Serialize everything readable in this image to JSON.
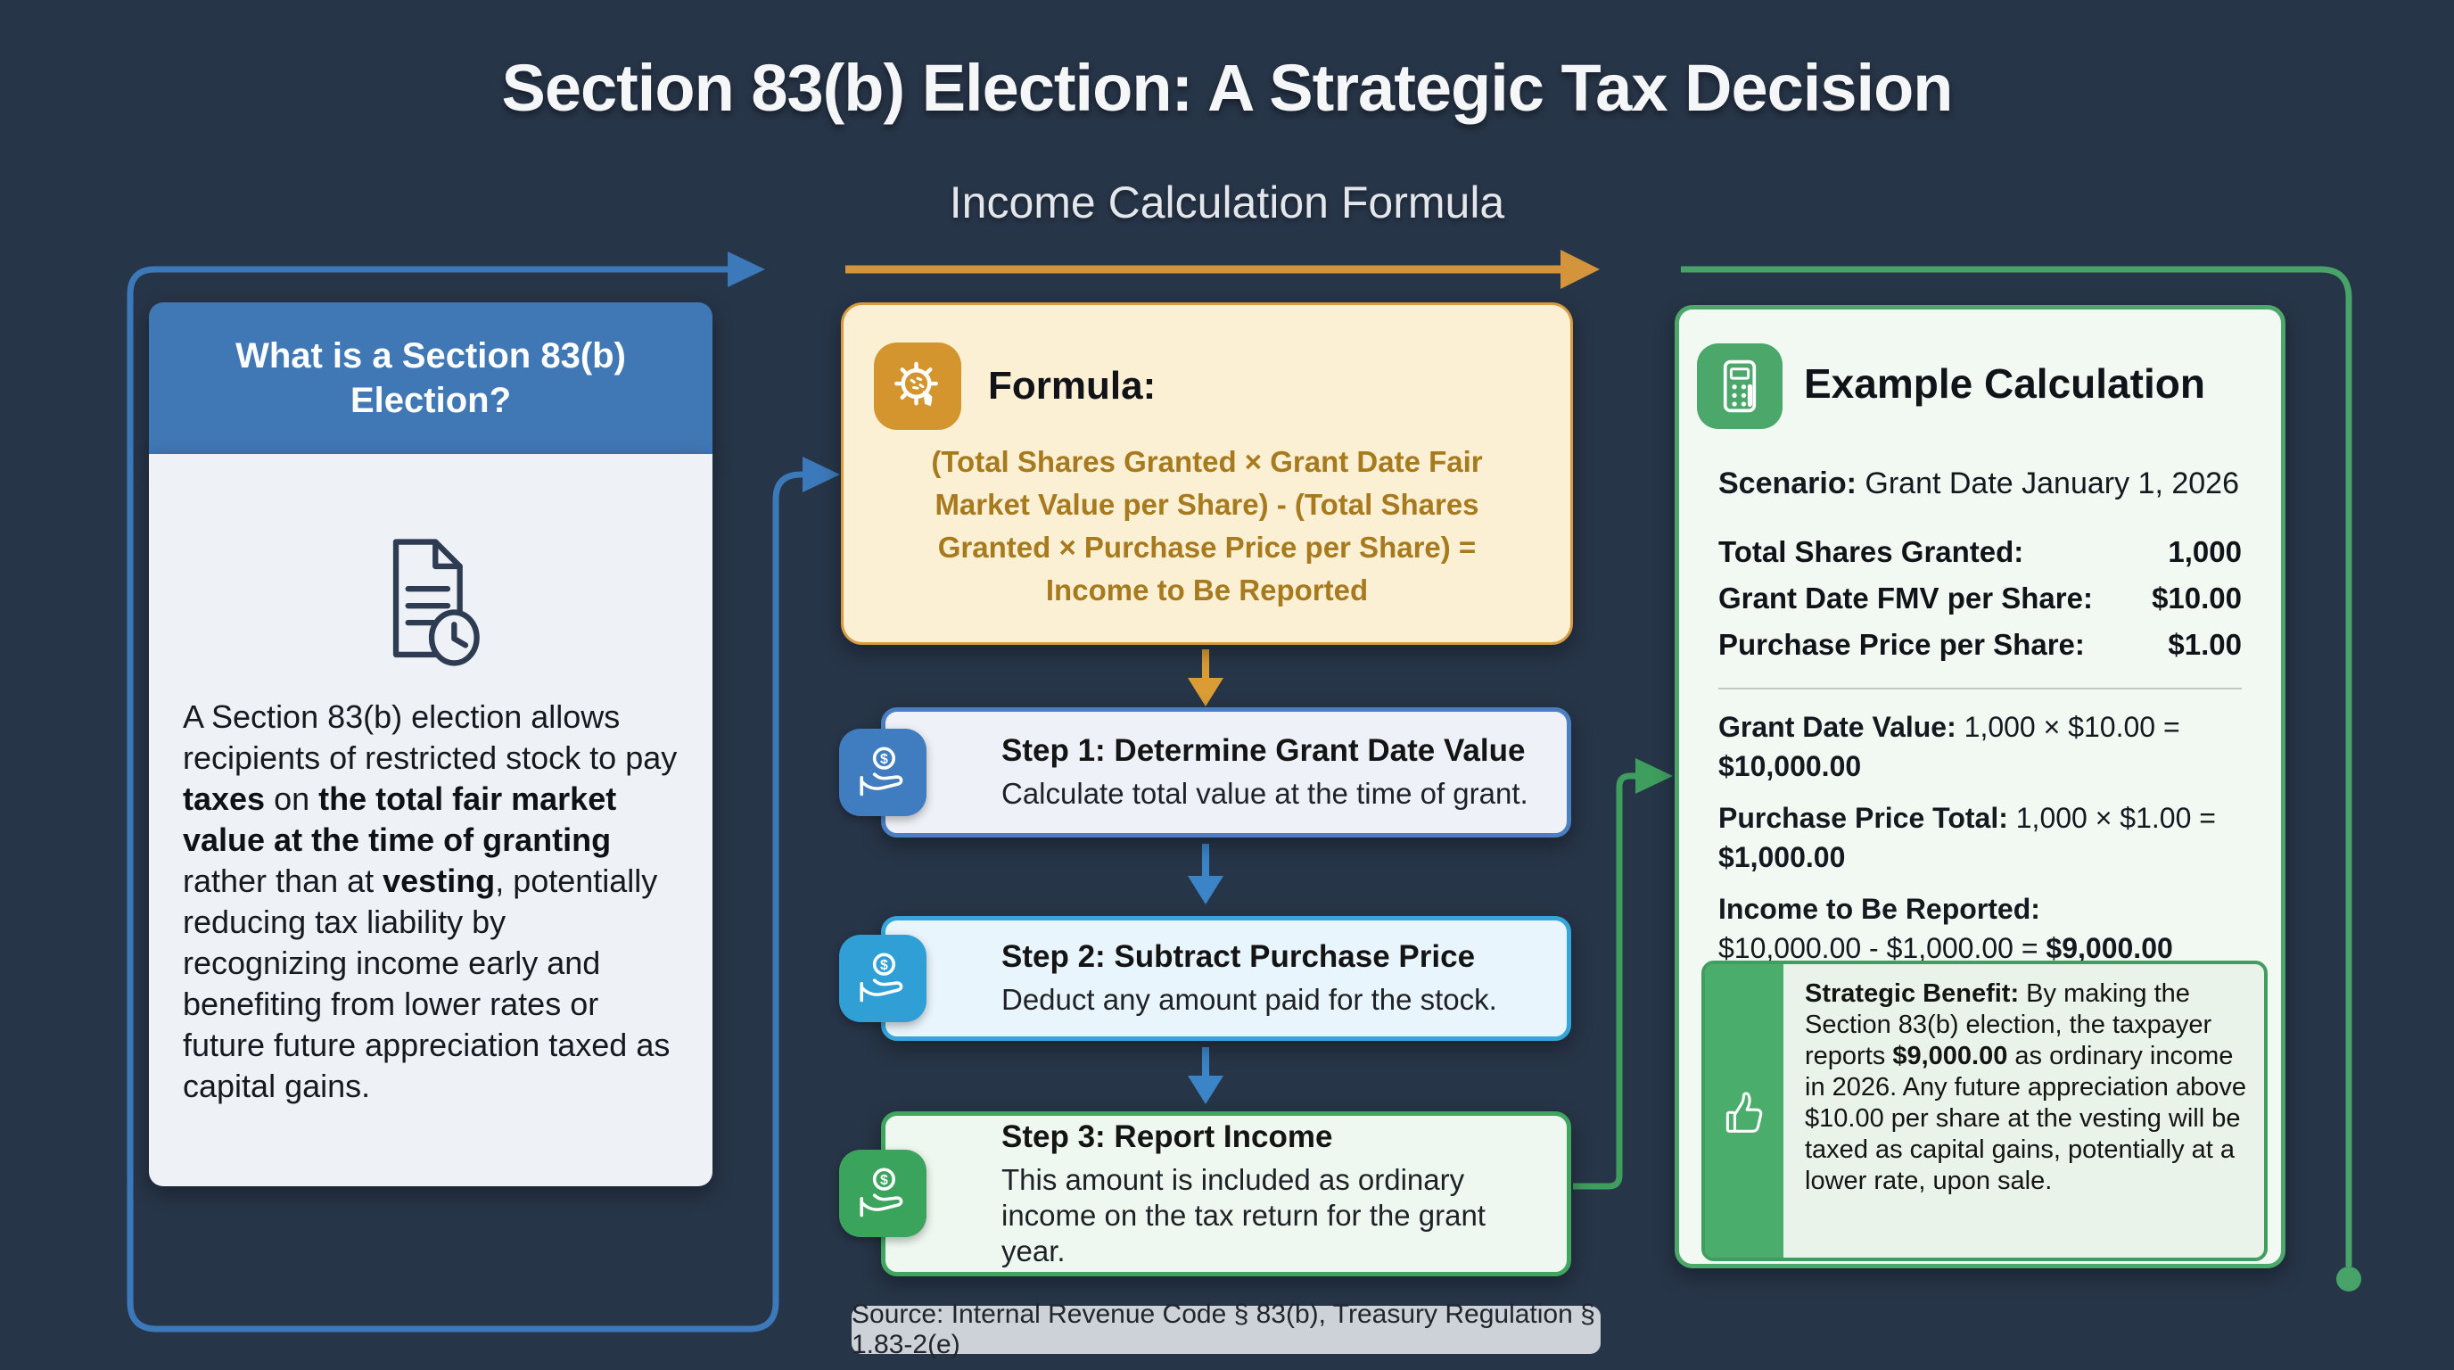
{
  "page": {
    "title": "Section 83(b) Election: A Strategic Tax Decision",
    "subtitle": "Income Calculation Formula"
  },
  "left_panel": {
    "header": "What is a Section 83(b) Election?",
    "icon": "document-clock-icon",
    "body_segments": [
      {
        "t": "A Section 83(b) election allows recipients of restricted stock to pay ",
        "b": false
      },
      {
        "t": "taxes",
        "b": true
      },
      {
        "t": " on ",
        "b": false
      },
      {
        "t": "the total fair market value at the time of granting",
        "b": true
      },
      {
        "t": " rather than at ",
        "b": false
      },
      {
        "t": "vesting",
        "b": true
      },
      {
        "t": ", potentially reducing tax liability by recognizing income early and benefiting from lower rates or future future appreciation taxed as capital gains.",
        "b": false
      }
    ]
  },
  "formula_panel": {
    "icon": "gear-icon",
    "label": "Formula:",
    "formula": "(Total Shares Granted × Grant Date Fair Market Value per Share) - (Total Shares Granted × Purchase Price per Share) = Income to Be Reported"
  },
  "steps": [
    {
      "icon": "hand-coin-icon",
      "title": "Step 1: Determine Grant Date Value",
      "subtitle": "Calculate total value at the time of grant.",
      "border_color": "#4a7fc1",
      "bg_color": "#eef1f7",
      "icon_bg": "#3f7dc0"
    },
    {
      "icon": "hand-coin-icon",
      "title": "Step 2: Subtract Purchase Price",
      "subtitle": "Deduct any amount paid for the stock.",
      "border_color": "#35a5da",
      "bg_color": "#e9f5fc",
      "icon_bg": "#2f9fd6"
    },
    {
      "icon": "hand-coin-icon",
      "title": "Step 3: Report Income",
      "subtitle": "This amount is included as ordinary income on the tax return for the grant year.",
      "border_color": "#3fa55f",
      "bg_color": "#eff8f0",
      "icon_bg": "#3aa35c"
    }
  ],
  "example_panel": {
    "icon": "calculator-icon",
    "title": "Example Calculation",
    "scenario_label": "Scenario:",
    "scenario_value": " Grant Date January 1, 2026",
    "rows": [
      {
        "label": "Total Shares Granted:",
        "value": "1,000"
      },
      {
        "label": "Grant Date FMV per Share:",
        "value": "$10.00"
      },
      {
        "label": "Purchase Price per Share:",
        "value": "$1.00"
      }
    ],
    "calculations": [
      {
        "lines": [
          [
            {
              "t": "Grant Date Value:",
              "b": true
            },
            {
              "t": " 1,000 × $10.00 =",
              "b": false
            }
          ],
          [
            {
              "t": "$10,000.00",
              "b": true
            }
          ]
        ]
      },
      {
        "lines": [
          [
            {
              "t": "Purchase Price Total:",
              "b": true
            },
            {
              "t": " 1,000 × $1.00 =",
              "b": false
            }
          ],
          [
            {
              "t": "$1,000.00",
              "b": true
            }
          ]
        ]
      },
      {
        "lines": [
          [
            {
              "t": "Income to Be Reported:",
              "b": true
            }
          ],
          [
            {
              "t": "$10,000.00 - $1,000.00 = ",
              "b": false
            },
            {
              "t": "$9,000.00",
              "b": true
            }
          ]
        ]
      }
    ],
    "benefit": {
      "icon": "thumbs-up-icon",
      "segments": [
        {
          "t": "Strategic Benefit:",
          "b": true
        },
        {
          "t": " By making the Section 83(b) election, the taxpayer reports ",
          "b": false
        },
        {
          "t": "$9,000.00",
          "b": true
        },
        {
          "t": " as ordinary income in 2026. Any future appreciation above $10.00 per share at the vesting will be taxed as capital gains, potentially at a lower rate, upon sale.",
          "b": false
        }
      ]
    }
  },
  "source": {
    "text": "Source: Internal Revenue Code § 83(b), Treasury Regulation § 1.83-2(e)"
  },
  "colors": {
    "background": "#273548",
    "left_header_blue": "#4077b5",
    "frame_blue": "#3c79ba",
    "formula_orange": "#d89b3e",
    "formula_text_gold": "#a87a1e",
    "arrow_orange": "#d3943c",
    "arrow_blue": "#3b84c8",
    "green_accent": "#4ba76a",
    "source_pill_gray": "#cdd2d9"
  }
}
